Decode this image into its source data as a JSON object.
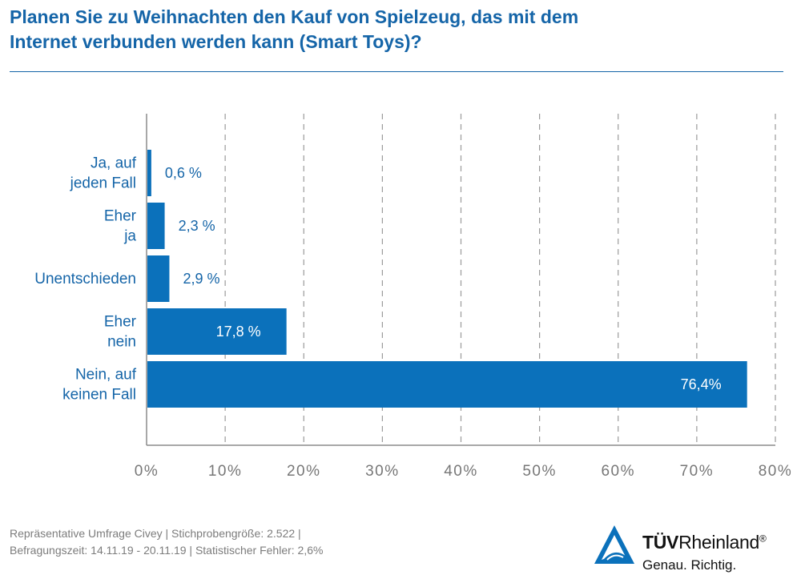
{
  "header": {
    "title_line1": "Planen Sie zu Weihnachten den Kauf von Spielzeug, das mit dem",
    "title_line2": "Internet verbunden werden kann (Smart Toys)?"
  },
  "chart_data": {
    "type": "bar",
    "orientation": "horizontal",
    "categories": [
      [
        "Ja, auf",
        "jeden Fall"
      ],
      [
        "Eher",
        "ja"
      ],
      [
        "Unentschieden"
      ],
      [
        "Eher",
        "nein"
      ],
      [
        "Nein, auf",
        "keinen Fall"
      ]
    ],
    "values": [
      0.6,
      2.3,
      2.9,
      17.8,
      76.4
    ],
    "value_labels": [
      "0,6 %",
      "2,3 %",
      "2,9 %",
      "17,8 %",
      "76,4%"
    ],
    "xlim": [
      0,
      80
    ],
    "x_ticks": [
      0,
      10,
      20,
      30,
      40,
      50,
      60,
      70,
      80
    ],
    "x_tick_labels": [
      "0%",
      "10%",
      "20%",
      "30%",
      "40%",
      "50%",
      "60%",
      "70%",
      "80%"
    ],
    "grid": "vertical-dashed",
    "bar_color": "#0b71bb"
  },
  "footer": {
    "line1": "Repräsentative Umfrage Civey | Stichprobengröße: 2.522 |",
    "line2": "Befragungszeit: 14.11.19 - 20.11.19 | Statistischer Fehler: 2,6%"
  },
  "brand": {
    "name_bold": "TÜV",
    "name_light": "Rheinland",
    "registered": "®",
    "tagline": "Genau. Richtig.",
    "logo_icon": "tuv-triangle-icon",
    "logo_color": "#0b71bb"
  }
}
